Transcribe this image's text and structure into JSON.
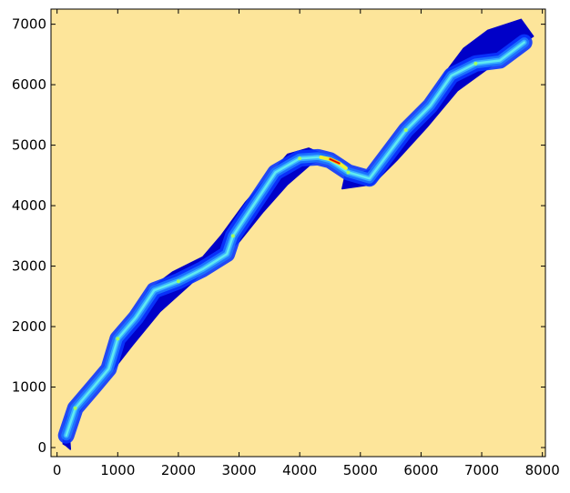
{
  "chart_data": {
    "type": "heatmap",
    "title": "",
    "xlabel": "",
    "ylabel": "",
    "xlim": [
      -100,
      8050
    ],
    "ylim": [
      -150,
      7250
    ],
    "x_ticks": [
      0,
      1000,
      2000,
      3000,
      4000,
      5000,
      6000,
      7000,
      8000
    ],
    "x_tick_labels": [
      "0",
      "1000",
      "2000",
      "3000",
      "4000",
      "5000",
      "6000",
      "7000",
      "8000"
    ],
    "y_ticks": [
      0,
      1000,
      2000,
      3000,
      4000,
      5000,
      6000,
      7000
    ],
    "y_tick_labels": [
      "0",
      "1000",
      "2000",
      "3000",
      "4000",
      "5000",
      "6000",
      "7000"
    ],
    "grid": false,
    "colormap": "jet",
    "background_color": "#fde59a",
    "colors": {
      "deep_blue": "#0000c8",
      "blue": "#0a36ff",
      "mid_blue": "#1e78ff",
      "light_blue": "#3cb4ff",
      "cyan": "#64f0f0",
      "green": "#a0ff60",
      "yellow": "#f0f030",
      "orange": "#ff8a00",
      "red": "#e00000"
    },
    "river_domain_outline": [
      [
        100,
        60
      ],
      [
        120,
        350
      ],
      [
        170,
        520
      ],
      [
        380,
        720
      ],
      [
        700,
        1150
      ],
      [
        950,
        1750
      ],
      [
        1150,
        2000
      ],
      [
        1500,
        2600
      ],
      [
        1900,
        2900
      ],
      [
        2400,
        3150
      ],
      [
        2700,
        3500
      ],
      [
        3100,
        4050
      ],
      [
        3500,
        4500
      ],
      [
        3800,
        4850
      ],
      [
        4150,
        4950
      ],
      [
        4500,
        4800
      ],
      [
        4750,
        4500
      ],
      [
        4700,
        4280
      ],
      [
        5200,
        4350
      ],
      [
        5600,
        4750
      ],
      [
        6100,
        5300
      ],
      [
        6600,
        5900
      ],
      [
        7150,
        6300
      ],
      [
        7550,
        6600
      ],
      [
        7850,
        6800
      ],
      [
        7650,
        7080
      ],
      [
        7100,
        6900
      ],
      [
        6700,
        6600
      ],
      [
        6400,
        6200
      ],
      [
        6100,
        5650
      ],
      [
        5700,
        5250
      ],
      [
        5300,
        4650
      ],
      [
        4900,
        4500
      ],
      [
        4500,
        4800
      ],
      [
        4200,
        4700
      ],
      [
        3800,
        4350
      ],
      [
        3400,
        3900
      ],
      [
        3000,
        3400
      ],
      [
        2600,
        3100
      ],
      [
        2200,
        2700
      ],
      [
        1700,
        2250
      ],
      [
        1250,
        1700
      ],
      [
        900,
        1250
      ],
      [
        550,
        850
      ],
      [
        300,
        500
      ],
      [
        200,
        250
      ],
      [
        220,
        -30
      ],
      [
        150,
        30
      ]
    ],
    "channel_centerline": [
      [
        150,
        200
      ],
      [
        300,
        650
      ],
      [
        600,
        1000
      ],
      [
        850,
        1300
      ],
      [
        1000,
        1800
      ],
      [
        1300,
        2150
      ],
      [
        1600,
        2600
      ],
      [
        2000,
        2750
      ],
      [
        2400,
        2950
      ],
      [
        2800,
        3200
      ],
      [
        2900,
        3500
      ],
      [
        3300,
        4100
      ],
      [
        3600,
        4550
      ],
      [
        4000,
        4780
      ],
      [
        4300,
        4800
      ],
      [
        4500,
        4750
      ],
      [
        4800,
        4550
      ],
      [
        5150,
        4450
      ],
      [
        5450,
        4850
      ],
      [
        5750,
        5250
      ],
      [
        6150,
        5650
      ],
      [
        6500,
        6150
      ],
      [
        6900,
        6350
      ],
      [
        7300,
        6400
      ],
      [
        7700,
        6700
      ]
    ],
    "high_value_reach": [
      [
        4350,
        4800
      ],
      [
        4500,
        4770
      ],
      [
        4650,
        4700
      ],
      [
        4760,
        4620
      ]
    ]
  }
}
